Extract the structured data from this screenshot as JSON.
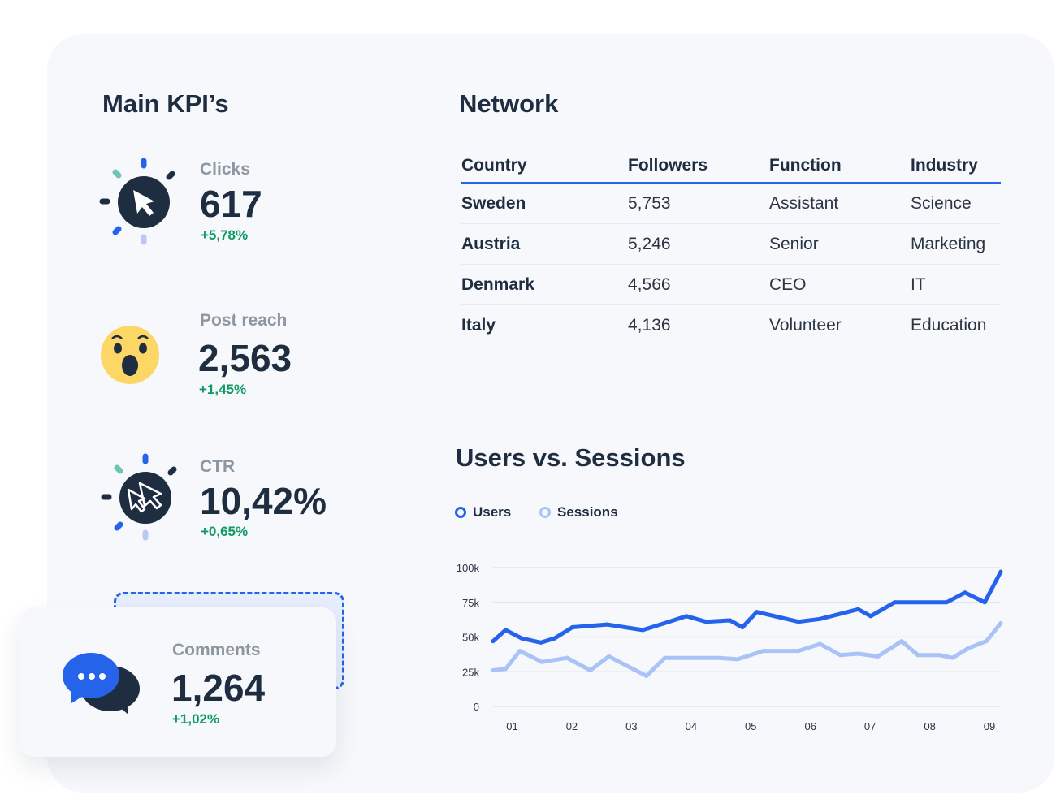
{
  "kpis": {
    "title": "Main KPI’s",
    "items": [
      {
        "label": "Clicks",
        "value": "617",
        "change": "+5,78%",
        "icon": "cursor-click-icon"
      },
      {
        "label": "Post reach",
        "value": "2,563",
        "change": "+1,45%",
        "icon": "wow-emoji-icon"
      },
      {
        "label": "CTR",
        "value": "10,42%",
        "change": "+0,65%",
        "icon": "double-cursor-icon"
      },
      {
        "label": "Comments",
        "value": "1,264",
        "change": "+1,02%",
        "icon": "chat-bubbles-icon"
      }
    ]
  },
  "network": {
    "title": "Network",
    "columns": [
      "Country",
      "Followers",
      "Function",
      "Industry"
    ],
    "rows": [
      [
        "Sweden",
        "5,753",
        "Assistant",
        "Science"
      ],
      [
        "Austria",
        "5,246",
        "Senior",
        "Marketing"
      ],
      [
        "Denmark",
        "4,566",
        "CEO",
        "IT"
      ],
      [
        "Italy",
        "4,136",
        "Volunteer",
        "Education"
      ]
    ]
  },
  "colors": {
    "accent": "#2563eb",
    "sessions": "#a9c3f7",
    "positive": "#0f9b63",
    "dark": "#1e2d40"
  },
  "chart_data": {
    "type": "line",
    "title": "Users vs. Sessions",
    "legend_position": "top-left",
    "grid": true,
    "ylim": [
      0,
      100000
    ],
    "yticks": [
      0,
      25000,
      50000,
      75000,
      100000
    ],
    "ytick_labels": [
      "0",
      "25k",
      "50k",
      "75k",
      "100k"
    ],
    "xticks": [
      1,
      2,
      3,
      4,
      5,
      6,
      7,
      8,
      9
    ],
    "xtick_labels": [
      "01",
      "02",
      "03",
      "04",
      "05",
      "06",
      "07",
      "08",
      "09"
    ],
    "xlim": [
      0.68,
      9.19
    ],
    "series": [
      {
        "name": "Users",
        "color": "#2563eb",
        "x": [
          0.68,
          0.89,
          1.16,
          1.48,
          1.71,
          2.01,
          2.59,
          2.89,
          3.19,
          3.56,
          3.92,
          4.25,
          4.65,
          4.86,
          5.1,
          5.8,
          6.16,
          6.53,
          6.8,
          7.01,
          7.41,
          8.28,
          8.59,
          8.92,
          9.19
        ],
        "values": [
          47000,
          55000,
          49000,
          46000,
          49000,
          57000,
          59000,
          57000,
          55000,
          60000,
          65000,
          61000,
          62000,
          57000,
          68000,
          61000,
          63000,
          67000,
          70000,
          65000,
          75000,
          75000,
          82000,
          75000,
          97000
        ]
      },
      {
        "name": "Sessions",
        "color": "#a9c3f7",
        "x": [
          0.68,
          0.89,
          1.13,
          1.5,
          1.92,
          2.31,
          2.62,
          2.89,
          3.25,
          3.56,
          4.47,
          4.78,
          5.21,
          5.8,
          6.16,
          6.5,
          6.8,
          7.13,
          7.53,
          7.8,
          8.16,
          8.38,
          8.65,
          8.95,
          9.19
        ],
        "values": [
          26000,
          27000,
          40000,
          32000,
          35000,
          26000,
          36000,
          30000,
          22000,
          35000,
          35000,
          34000,
          40000,
          40000,
          45000,
          37000,
          38000,
          36000,
          47000,
          37000,
          37000,
          35000,
          42000,
          47000,
          60000
        ]
      }
    ]
  }
}
